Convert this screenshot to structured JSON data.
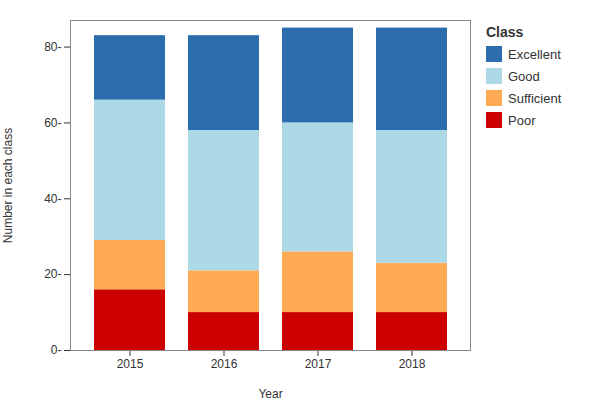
{
  "chart_data": {
    "type": "bar",
    "stacked": true,
    "categories": [
      "2015",
      "2016",
      "2017",
      "2018"
    ],
    "series": [
      {
        "name": "Poor",
        "color": "#CC0000",
        "values": [
          16,
          10,
          10,
          10
        ]
      },
      {
        "name": "Sufficient",
        "color": "#FFAA55",
        "values": [
          13,
          11,
          16,
          13
        ]
      },
      {
        "name": "Good",
        "color": "#ADD8E6",
        "values": [
          37,
          37,
          34,
          35
        ]
      },
      {
        "name": "Excellent",
        "color": "#2B6DAD",
        "values": [
          17,
          25,
          25,
          27
        ]
      }
    ],
    "xlabel": "Year",
    "ylabel": "Number in each class",
    "legend_title": "Class",
    "legend": "right",
    "ylim": [
      0,
      87
    ],
    "yticks": [
      {
        "value": 0,
        "label": "0-"
      },
      {
        "value": 20,
        "label": "20-"
      },
      {
        "value": 40,
        "label": "40-"
      },
      {
        "value": 60,
        "label": "60-"
      },
      {
        "value": 80,
        "label": "80-"
      }
    ],
    "grid": false
  }
}
